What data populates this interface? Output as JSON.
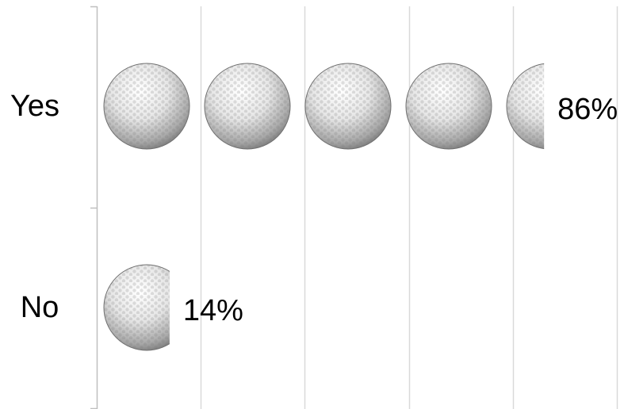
{
  "chart_data": {
    "type": "bar",
    "orientation": "horizontal",
    "marker": "golf-ball-icon",
    "categories": [
      "Yes",
      "No"
    ],
    "values": [
      86,
      14
    ],
    "value_labels": [
      "86%",
      "14%"
    ],
    "xlim": [
      0,
      100
    ],
    "grid": true,
    "title": "",
    "xlabel": "",
    "ylabel": "",
    "colors": {
      "grid": "#d9d9d9",
      "axis": "#bfbfbf",
      "text": "#000000"
    }
  }
}
